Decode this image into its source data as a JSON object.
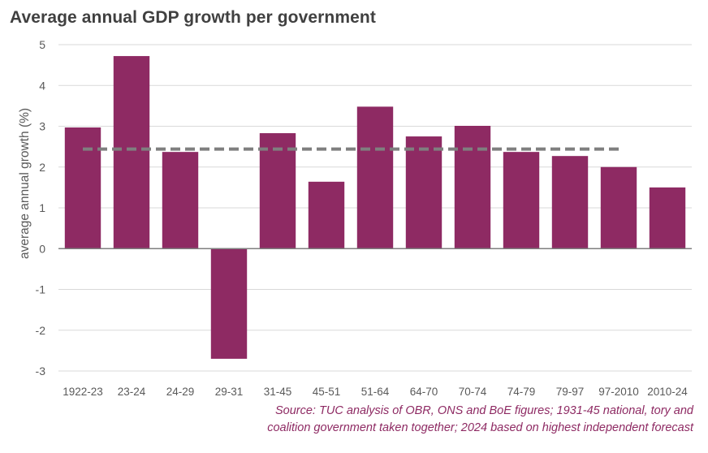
{
  "chart_data": {
    "type": "bar",
    "title": "Average annual GDP growth per government",
    "ylabel": "average annual growth (%)",
    "xlabel": "",
    "categories": [
      "1922-23",
      "23-24",
      "24-29",
      "29-31",
      "31-45",
      "45-51",
      "51-64",
      "64-70",
      "70-74",
      "74-79",
      "79-97",
      "97-2010",
      "2010-24"
    ],
    "values": [
      2.97,
      4.72,
      2.37,
      -2.7,
      2.83,
      1.64,
      3.48,
      2.75,
      3.01,
      2.37,
      2.27,
      2.0,
      1.5
    ],
    "average_line": 2.44,
    "ylim": [
      -3,
      5
    ],
    "yticks": [
      5,
      4,
      3,
      2,
      1,
      0,
      -1,
      -2,
      -3
    ],
    "grid": true,
    "colors": {
      "bar": "#8e2a63",
      "average_line": "#7f7f7f",
      "grid": "#d9d9d9",
      "axis": "#7f7f7f"
    }
  },
  "source_lines": [
    "Source: TUC analysis of OBR, ONS and BoE figures; 1931-45 national, tory and",
    "coalition government taken together; 2024 based on highest independent forecast"
  ]
}
